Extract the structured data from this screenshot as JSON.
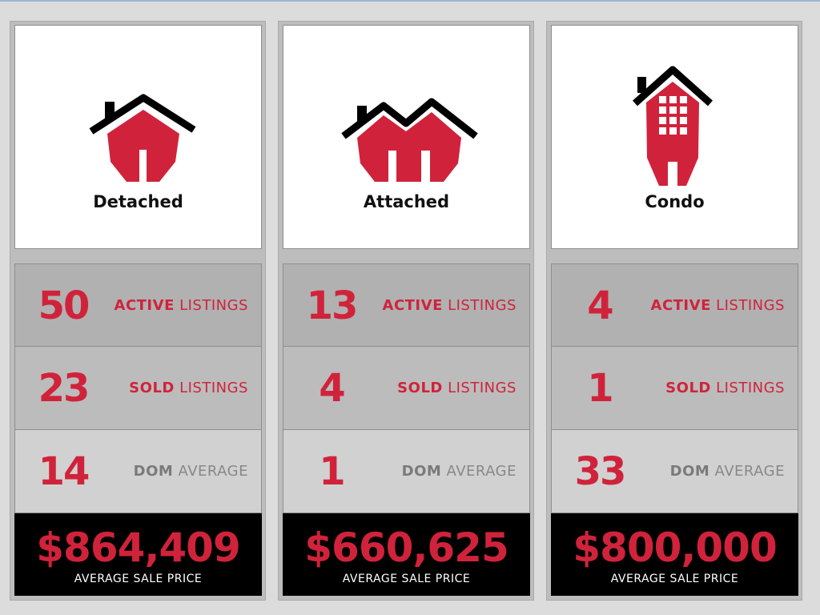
{
  "colors": {
    "accent": "#d0233b",
    "roof": "#000000",
    "price_bg": "#000000"
  },
  "columns": [
    {
      "icon": "detached-house-icon",
      "type": "Detached",
      "active": {
        "count": "50",
        "label_bold": "ACTIVE",
        "label_rest": " LISTINGS"
      },
      "sold": {
        "count": "23",
        "label_bold": "SOLD",
        "label_rest": " LISTINGS"
      },
      "dom": {
        "count": "14",
        "label_bold": "DOM",
        "label_rest": " AVERAGE"
      },
      "price": {
        "value": "$864,409",
        "label": "AVERAGE SALE PRICE"
      }
    },
    {
      "icon": "attached-house-icon",
      "type": "Attached",
      "active": {
        "count": "13",
        "label_bold": "ACTIVE",
        "label_rest": " LISTINGS"
      },
      "sold": {
        "count": "4",
        "label_bold": "SOLD",
        "label_rest": " LISTINGS"
      },
      "dom": {
        "count": "1",
        "label_bold": "DOM",
        "label_rest": " AVERAGE"
      },
      "price": {
        "value": "$660,625",
        "label": "AVERAGE SALE PRICE"
      }
    },
    {
      "icon": "condo-building-icon",
      "type": "Condo",
      "active": {
        "count": "4",
        "label_bold": "ACTIVE",
        "label_rest": " LISTINGS"
      },
      "sold": {
        "count": "1",
        "label_bold": "SOLD",
        "label_rest": " LISTINGS"
      },
      "dom": {
        "count": "33",
        "label_bold": "DOM",
        "label_rest": " AVERAGE"
      },
      "price": {
        "value": "$800,000",
        "label": "AVERAGE SALE PRICE"
      }
    }
  ]
}
